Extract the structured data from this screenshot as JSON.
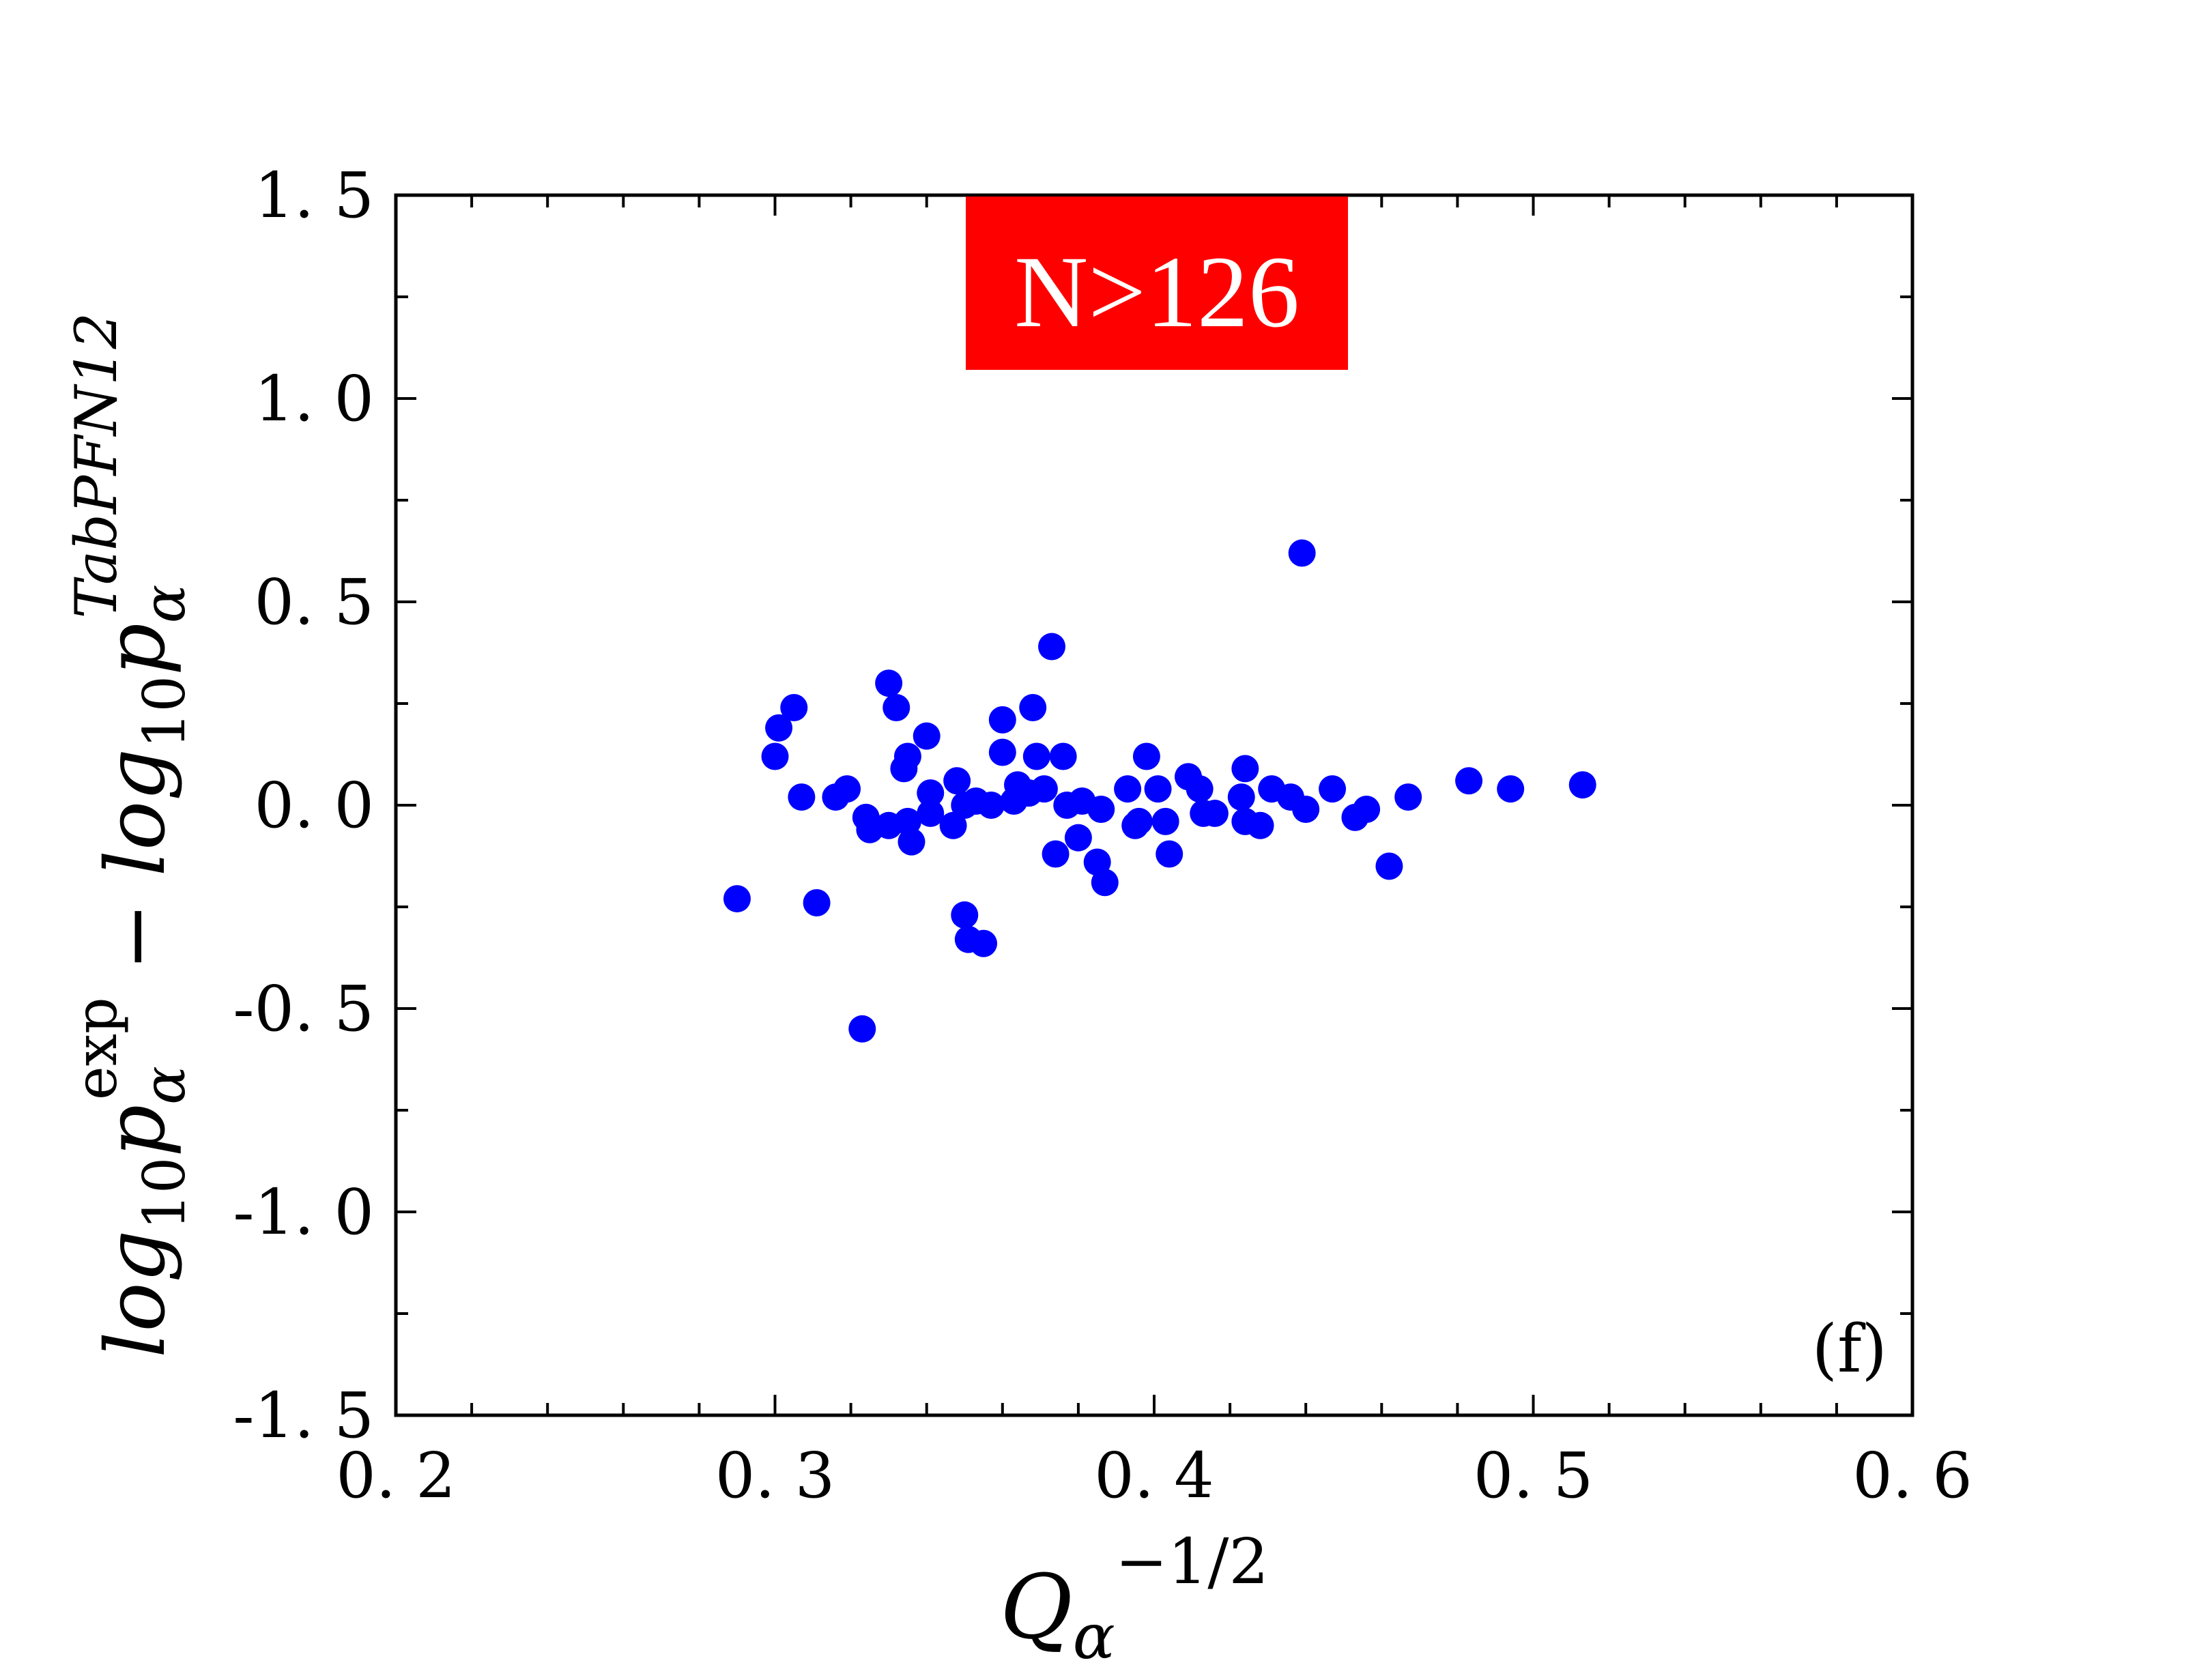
{
  "chart_data": {
    "type": "scatter",
    "badge": {
      "text": "N>126",
      "background": "#ff0000",
      "color": "#ffffff"
    },
    "panel_label": "(f)",
    "xlabel": {
      "base": "Q",
      "subscript": "α",
      "superscript": "−1/2"
    },
    "ylabel": {
      "part1_base": "log",
      "part1_sub": "10",
      "part1_p": "p",
      "part1_p_sub": "α",
      "part1_sup": "exp",
      "minus": " − ",
      "part2_base": "log",
      "part2_sub": "10",
      "part2_p": "p",
      "part2_p_sub": "α",
      "part2_sup": "TabPFN12"
    },
    "xlim": [
      0.2,
      0.6
    ],
    "ylim": [
      -1.5,
      1.5
    ],
    "xticks": [
      0.2,
      0.3,
      0.4,
      0.5,
      0.6
    ],
    "xtick_labels": [
      "0. 2",
      "0. 3",
      "0. 4",
      "0. 5",
      "0. 6"
    ],
    "yticks": [
      1.5,
      1.0,
      0.5,
      0.0,
      -0.5,
      -1.0,
      -1.5
    ],
    "ytick_labels": [
      "1. 5",
      "1. 0",
      "0. 5",
      "0. 0",
      "-0. 5",
      "-1. 0",
      "-1. 5"
    ],
    "marker_color": "#0000ff",
    "series": [
      {
        "points": [
          [
            0.29,
            -0.23
          ],
          [
            0.3,
            0.12
          ],
          [
            0.301,
            0.19
          ],
          [
            0.305,
            0.24
          ],
          [
            0.307,
            0.02
          ],
          [
            0.311,
            -0.24
          ],
          [
            0.316,
            0.02
          ],
          [
            0.319,
            0.04
          ],
          [
            0.323,
            -0.55
          ],
          [
            0.324,
            -0.03
          ],
          [
            0.325,
            -0.06
          ],
          [
            0.33,
            0.3
          ],
          [
            0.33,
            -0.05
          ],
          [
            0.332,
            0.24
          ],
          [
            0.334,
            0.09
          ],
          [
            0.335,
            0.12
          ],
          [
            0.335,
            -0.04
          ],
          [
            0.336,
            -0.09
          ],
          [
            0.34,
            0.17
          ],
          [
            0.341,
            0.03
          ],
          [
            0.341,
            -0.02
          ],
          [
            0.347,
            -0.05
          ],
          [
            0.348,
            0.06
          ],
          [
            0.35,
            0.0
          ],
          [
            0.35,
            -0.27
          ],
          [
            0.351,
            -0.33
          ],
          [
            0.353,
            0.01
          ],
          [
            0.355,
            -0.34
          ],
          [
            0.357,
            0.0
          ],
          [
            0.36,
            0.21
          ],
          [
            0.36,
            0.13
          ],
          [
            0.363,
            0.01
          ],
          [
            0.364,
            0.05
          ],
          [
            0.367,
            0.03
          ],
          [
            0.368,
            0.24
          ],
          [
            0.369,
            0.12
          ],
          [
            0.371,
            0.04
          ],
          [
            0.373,
            0.39
          ],
          [
            0.374,
            -0.12
          ],
          [
            0.376,
            0.12
          ],
          [
            0.377,
            0.0
          ],
          [
            0.38,
            -0.08
          ],
          [
            0.381,
            0.01
          ],
          [
            0.385,
            -0.14
          ],
          [
            0.386,
            -0.01
          ],
          [
            0.387,
            -0.19
          ],
          [
            0.393,
            0.04
          ],
          [
            0.395,
            -0.05
          ],
          [
            0.396,
            -0.04
          ],
          [
            0.398,
            0.12
          ],
          [
            0.401,
            0.04
          ],
          [
            0.403,
            -0.04
          ],
          [
            0.404,
            -0.12
          ],
          [
            0.409,
            0.07
          ],
          [
            0.412,
            0.04
          ],
          [
            0.413,
            -0.02
          ],
          [
            0.416,
            -0.02
          ],
          [
            0.423,
            0.02
          ],
          [
            0.424,
            -0.04
          ],
          [
            0.424,
            0.09
          ],
          [
            0.428,
            -0.05
          ],
          [
            0.431,
            0.04
          ],
          [
            0.436,
            0.02
          ],
          [
            0.439,
            0.62
          ],
          [
            0.44,
            -0.01
          ],
          [
            0.447,
            0.04
          ],
          [
            0.453,
            -0.03
          ],
          [
            0.456,
            -0.01
          ],
          [
            0.462,
            -0.15
          ],
          [
            0.467,
            0.02
          ],
          [
            0.483,
            0.06
          ],
          [
            0.494,
            0.04
          ],
          [
            0.513,
            0.05
          ]
        ]
      }
    ]
  }
}
